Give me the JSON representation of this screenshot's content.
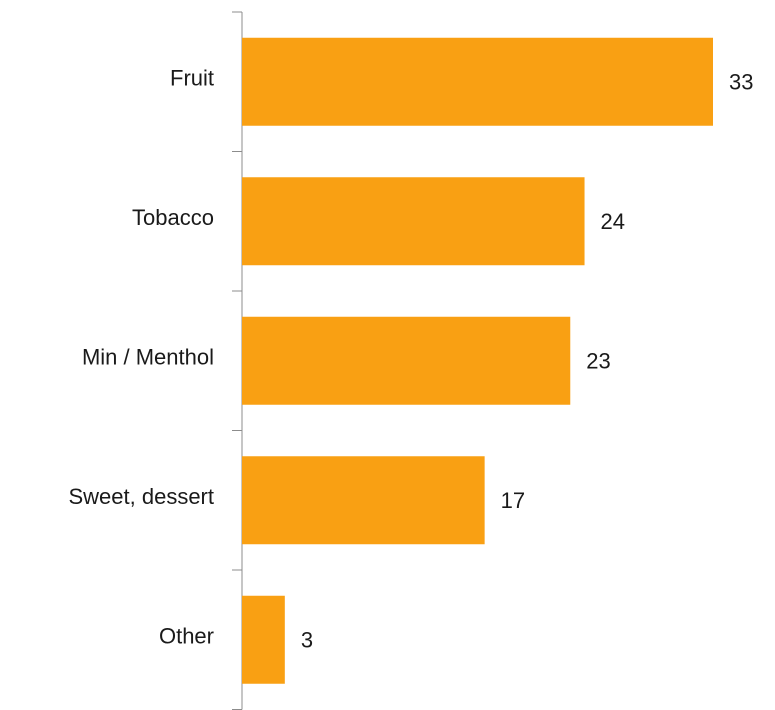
{
  "chart_data": {
    "type": "bar",
    "orientation": "horizontal",
    "categories": [
      "Fruit",
      "Tobacco",
      "Min / Menthol",
      "Sweet, dessert",
      "Other"
    ],
    "values": [
      33,
      24,
      23,
      17,
      3
    ],
    "color": "#f9a013"
  }
}
